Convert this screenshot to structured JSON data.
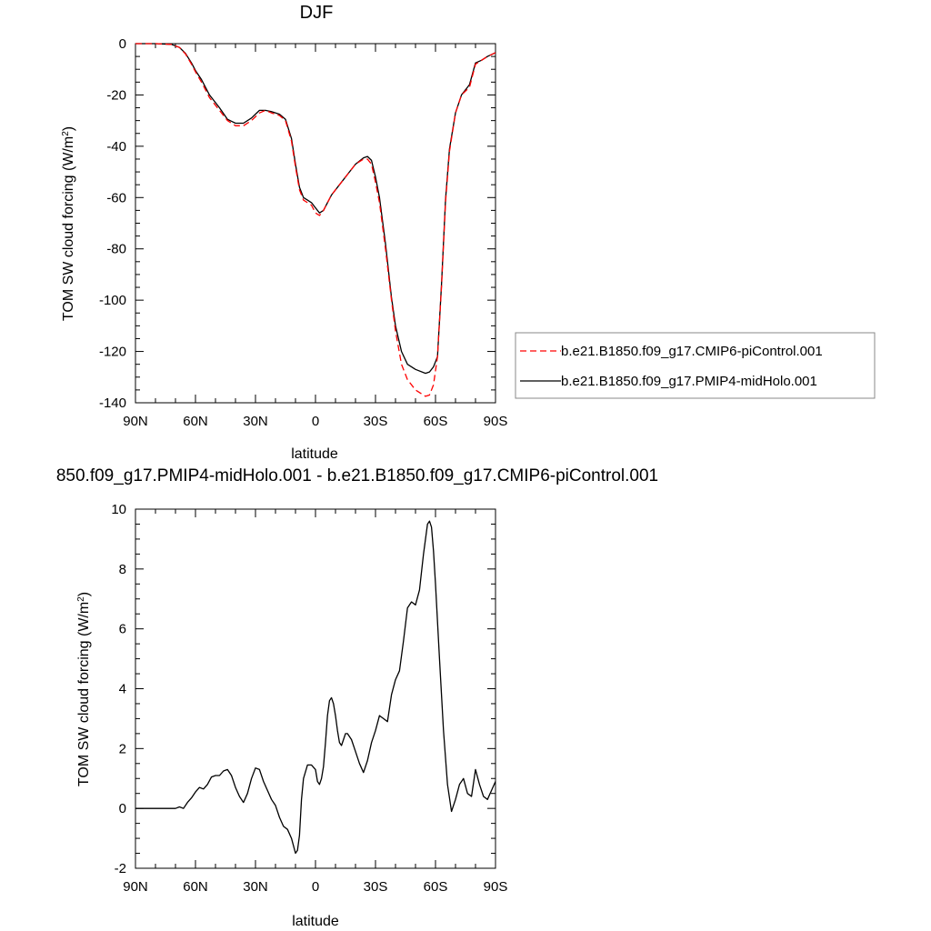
{
  "chart_data": [
    {
      "type": "line",
      "title": "DJF",
      "xlabel": "latitude",
      "ylabel": "TOM SW cloud forcing (W/m",
      "ylabel_sup": "2",
      "ylabel_close": ")",
      "xlim": [
        90,
        -90
      ],
      "ylim": [
        -140,
        0
      ],
      "x_ticks": [
        90,
        60,
        30,
        0,
        -30,
        -60,
        -90
      ],
      "x_tick_labels": [
        "90N",
        "60N",
        "30N",
        "0",
        "30S",
        "60S",
        "90S"
      ],
      "y_ticks": [
        0,
        -20,
        -40,
        -60,
        -80,
        -100,
        -120,
        -140
      ],
      "y_tick_labels": [
        "0",
        "-20",
        "-40",
        "-60",
        "-80",
        "-100",
        "-120",
        "-140"
      ],
      "legend": {
        "placement": "right"
      },
      "series": [
        {
          "name": "b.e21.B1850.f09_g17.CMIP6-piControl.001",
          "color": "#ff0000",
          "dash": "dashed",
          "x": [
            90,
            80,
            72,
            68,
            65,
            62,
            60,
            57,
            53,
            48,
            44,
            40,
            36,
            32,
            28,
            25,
            22,
            18,
            15,
            12,
            10,
            8,
            6,
            4,
            2,
            0,
            -2,
            -4,
            -6,
            -8,
            -12,
            -16,
            -20,
            -24,
            -26,
            -28,
            -30,
            -32,
            -35,
            -38,
            -40,
            -43,
            -46,
            -50,
            -55,
            -57,
            -59,
            -61,
            -63,
            -65,
            -67,
            -70,
            -73,
            -77,
            -80,
            -83,
            -86,
            -90
          ],
          "y": [
            0,
            0,
            -0.3,
            -1.5,
            -4,
            -8,
            -11,
            -15,
            -21,
            -26,
            -30,
            -32,
            -32,
            -30,
            -27,
            -26,
            -27,
            -28,
            -30,
            -38,
            -48,
            -57,
            -61,
            -62,
            -63,
            -66,
            -67,
            -65,
            -62,
            -59,
            -55,
            -51,
            -47,
            -45,
            -45,
            -47,
            -54,
            -62,
            -80,
            -100,
            -112,
            -125,
            -131,
            -135,
            -137.5,
            -137,
            -133,
            -122,
            -95,
            -62,
            -42,
            -27,
            -20,
            -17,
            -8,
            -6.5,
            -5,
            -3.5
          ]
        },
        {
          "name": "b.e21.B1850.f09_g17.PMIP4-midHolo.001",
          "color": "#000000",
          "dash": "solid",
          "x": [
            90,
            80,
            72,
            68,
            65,
            62,
            60,
            57,
            53,
            48,
            44,
            40,
            36,
            32,
            28,
            25,
            22,
            18,
            15,
            12,
            10,
            8,
            6,
            4,
            2,
            0,
            -2,
            -4,
            -6,
            -8,
            -12,
            -16,
            -20,
            -24,
            -26,
            -28,
            -30,
            -32,
            -35,
            -38,
            -40,
            -43,
            -46,
            -50,
            -55,
            -57,
            -59,
            -61,
            -63,
            -65,
            -67,
            -70,
            -73,
            -77,
            -80,
            -83,
            -86,
            -90
          ],
          "y": [
            0,
            0,
            -0.3,
            -1.5,
            -3.8,
            -7.5,
            -10.5,
            -14,
            -20,
            -25,
            -29.5,
            -31,
            -31,
            -29,
            -26,
            -26,
            -26.5,
            -27.5,
            -29.5,
            -37,
            -47,
            -56,
            -60,
            -61,
            -62,
            -64,
            -66,
            -65,
            -62,
            -59,
            -55,
            -51,
            -47,
            -44.5,
            -44,
            -45.5,
            -52,
            -60,
            -78,
            -99,
            -110,
            -120,
            -125,
            -127,
            -128.5,
            -128,
            -126,
            -122,
            -94,
            -61,
            -41,
            -27,
            -20,
            -16,
            -7.5,
            -6.5,
            -5,
            -3.5
          ]
        }
      ]
    },
    {
      "type": "line",
      "title": "850.f09_g17.PMIP4-midHolo.001 - b.e21.B1850.f09_g17.CMIP6-piControl.001",
      "xlabel": "latitude",
      "ylabel": "TOM SW cloud forcing (W/m",
      "ylabel_sup": "2",
      "ylabel_close": ")",
      "xlim": [
        90,
        -90
      ],
      "ylim": [
        -2,
        10
      ],
      "x_ticks": [
        90,
        60,
        30,
        0,
        -30,
        -60,
        -90
      ],
      "x_tick_labels": [
        "90N",
        "60N",
        "30N",
        "0",
        "30S",
        "60S",
        "90S"
      ],
      "y_ticks": [
        -2,
        0,
        2,
        4,
        6,
        8,
        10
      ],
      "y_tick_labels": [
        "-2",
        "0",
        "2",
        "4",
        "6",
        "8",
        "10"
      ],
      "series": [
        {
          "color": "#000000",
          "dash": "solid",
          "x": [
            90,
            80,
            72,
            70,
            68,
            66,
            64,
            62,
            60,
            58,
            56,
            54,
            52,
            50,
            48,
            46,
            44,
            42,
            40,
            38,
            36,
            34,
            32,
            30,
            28,
            26,
            24,
            22,
            20,
            18,
            16,
            14,
            12,
            10,
            9,
            8,
            7,
            6,
            4,
            2,
            0,
            -1,
            -2,
            -3,
            -4,
            -5,
            -6,
            -7,
            -8,
            -9,
            -10,
            -11,
            -12,
            -13,
            -14,
            -15,
            -16,
            -18,
            -20,
            -22,
            -24,
            -26,
            -28,
            -30,
            -32,
            -34,
            -36,
            -38,
            -40,
            -42,
            -44,
            -46,
            -48,
            -50,
            -52,
            -54,
            -56,
            -57,
            -58,
            -59,
            -60,
            -62,
            -64,
            -66,
            -68,
            -70,
            -72,
            -74,
            -76,
            -78,
            -80,
            -82,
            -84,
            -86,
            -88,
            -90
          ],
          "y": [
            0,
            0,
            0,
            0,
            0.05,
            0,
            0.2,
            0.35,
            0.55,
            0.7,
            0.65,
            0.8,
            1.05,
            1.1,
            1.1,
            1.25,
            1.3,
            1.1,
            0.7,
            0.4,
            0.2,
            0.5,
            1.0,
            1.35,
            1.3,
            0.9,
            0.6,
            0.3,
            0.1,
            -0.3,
            -0.6,
            -0.7,
            -1.0,
            -1.5,
            -1.4,
            -0.9,
            0.3,
            1.0,
            1.45,
            1.45,
            1.3,
            0.9,
            0.8,
            1.0,
            1.4,
            2.2,
            3.1,
            3.6,
            3.7,
            3.5,
            3.1,
            2.6,
            2.2,
            2.1,
            2.3,
            2.5,
            2.5,
            2.3,
            1.9,
            1.5,
            1.2,
            1.6,
            2.2,
            2.6,
            3.1,
            3.0,
            2.9,
            3.8,
            4.3,
            4.6,
            5.6,
            6.7,
            6.9,
            6.8,
            7.3,
            8.5,
            9.5,
            9.6,
            9.4,
            8.6,
            7.5,
            5.0,
            2.6,
            0.8,
            -0.1,
            0.3,
            0.8,
            1.0,
            0.5,
            0.4,
            1.3,
            0.8,
            0.4,
            0.3,
            0.6,
            0.9
          ]
        }
      ]
    }
  ]
}
